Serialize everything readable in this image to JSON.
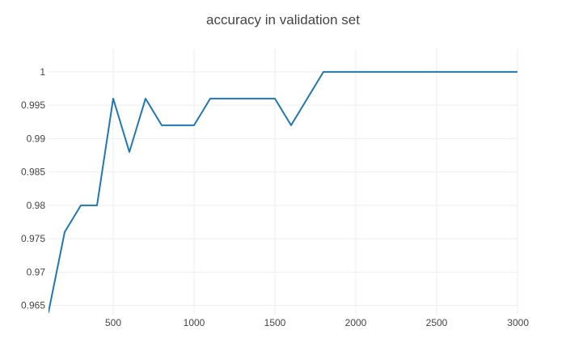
{
  "chart_data": {
    "type": "line",
    "title": "accuracy in validation set",
    "xlabel": "",
    "ylabel": "",
    "xlim": [
      100,
      3000
    ],
    "ylim": [
      0.9635,
      1.0035
    ],
    "x_ticks": [
      500,
      1000,
      1500,
      2000,
      2500,
      3000
    ],
    "y_ticks": [
      0.965,
      0.97,
      0.975,
      0.98,
      0.985,
      0.99,
      0.995,
      1
    ],
    "x_tick_labels": [
      "500",
      "1000",
      "1500",
      "2000",
      "2500",
      "3000"
    ],
    "y_tick_labels": [
      "0.965",
      "0.97",
      "0.975",
      "0.98",
      "0.985",
      "0.99",
      "0.995",
      "1"
    ],
    "grid": true,
    "series": [
      {
        "color": "#1f77b4",
        "x": [
          100,
          200,
          300,
          400,
          500,
          600,
          700,
          800,
          900,
          1000,
          1100,
          1200,
          1300,
          1400,
          1500,
          1600,
          1700,
          1800,
          1900,
          2000,
          2100,
          2200,
          2300,
          2400,
          2500,
          2600,
          2700,
          2800,
          2900,
          3000
        ],
        "y": [
          0.964,
          0.976,
          0.98,
          0.98,
          0.996,
          0.988,
          0.996,
          0.992,
          0.992,
          0.992,
          0.996,
          0.996,
          0.996,
          0.996,
          0.996,
          0.992,
          0.996,
          1,
          1,
          1,
          1,
          1,
          1,
          1,
          1,
          1,
          1,
          1,
          1,
          1
        ]
      }
    ]
  }
}
